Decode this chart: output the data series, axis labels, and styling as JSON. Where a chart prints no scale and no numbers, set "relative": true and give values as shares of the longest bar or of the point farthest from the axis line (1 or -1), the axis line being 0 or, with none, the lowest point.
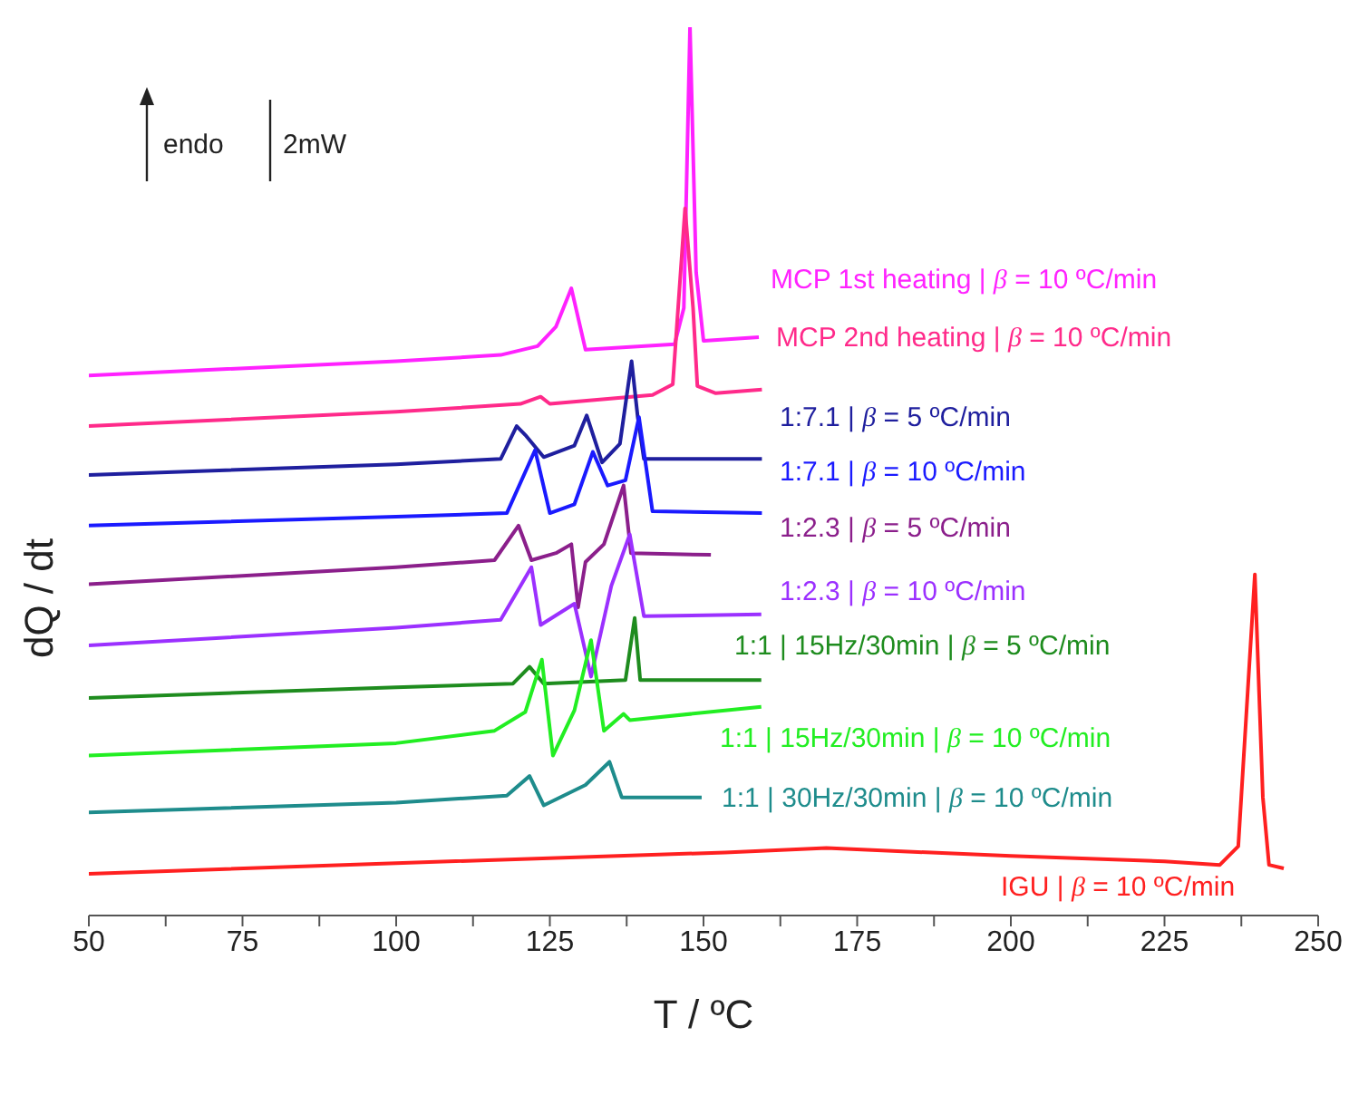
{
  "chart_data": {
    "type": "line",
    "relative": true,
    "xlabel": "T / ºC",
    "ylabel": "dQ / dt",
    "xlim": [
      50,
      250
    ],
    "xticks": [
      50,
      {
        "value": 62.5,
        "label": null
      },
      75,
      {
        "value": 87.5,
        "label": null
      },
      100,
      {
        "value": 112.5,
        "label": null
      },
      125,
      {
        "value": 137.5,
        "label": null
      },
      150,
      {
        "value": 162.5,
        "label": null
      },
      175,
      {
        "value": 187.5,
        "label": null
      },
      200,
      {
        "value": 212.5,
        "label": null
      },
      225,
      {
        "value": 237.5,
        "label": null
      },
      250
    ],
    "annotations": [
      "endo",
      "2mW"
    ],
    "series": [
      {
        "name": "MCP 1st heating | β = 10 ºC/min",
        "color": "#ff22ff",
        "x": [
          50,
          100,
          117,
          123,
          126,
          128.5,
          130.8,
          145.3,
          146.8,
          147.8,
          148.8,
          150,
          159
        ],
        "values": [
          0.608,
          0.624,
          0.631,
          0.641,
          0.663,
          0.706,
          0.637,
          0.643,
          0.684,
          1.0,
          0.724,
          0.647,
          0.651
        ]
      },
      {
        "name": "MCP 2nd heating | β = 10 ºC/min",
        "color": "#ff2a8a",
        "x": [
          50,
          100,
          120.2,
          123.5,
          125,
          141.7,
          145,
          147,
          148.3,
          149,
          152,
          159.5
        ],
        "values": [
          0.551,
          0.567,
          0.576,
          0.584,
          0.576,
          0.586,
          0.598,
          0.796,
          0.684,
          0.596,
          0.588,
          0.592
        ]
      },
      {
        "name": "1:7.1 | β = 5 ºC/min",
        "color": "#1f1f9e",
        "x": [
          50,
          100,
          117,
          119.6,
          121,
          124,
          129,
          131,
          133.5,
          136.4,
          138.3,
          139.3,
          140.3,
          159.5
        ],
        "values": [
          0.496,
          0.508,
          0.514,
          0.551,
          0.541,
          0.516,
          0.529,
          0.563,
          0.51,
          0.531,
          0.624,
          0.561,
          0.514,
          0.514
        ]
      },
      {
        "name": "1:7.1 | β = 10 ºC/min",
        "color": "#1a1aff",
        "x": [
          50,
          100,
          118,
          122.6,
          125,
          129,
          132,
          134.4,
          137.3,
          139.5,
          141.7,
          159.5
        ],
        "values": [
          0.439,
          0.449,
          0.453,
          0.524,
          0.453,
          0.463,
          0.522,
          0.484,
          0.49,
          0.561,
          0.455,
          0.453
        ]
      },
      {
        "name": "1:2.3 | β = 5 ºC/min",
        "color": "#8b1f8b",
        "x": [
          50,
          100,
          116,
          119.9,
          122,
          126,
          128.5,
          129.6,
          130.8,
          133.8,
          137,
          138.2,
          151.2
        ],
        "values": [
          0.373,
          0.392,
          0.4,
          0.439,
          0.4,
          0.408,
          0.418,
          0.347,
          0.398,
          0.418,
          0.484,
          0.408,
          0.406
        ]
      },
      {
        "name": "1:2.3 | β = 10 ºC/min",
        "color": "#9b30ff",
        "x": [
          50,
          100,
          117,
          122,
          123.5,
          129,
          131.7,
          135,
          138,
          140.3,
          159.4
        ],
        "values": [
          0.304,
          0.324,
          0.333,
          0.392,
          0.327,
          0.351,
          0.269,
          0.371,
          0.429,
          0.337,
          0.339
        ]
      },
      {
        "name": "1:1 | 15Hz/30min | β = 5 ºC/min",
        "color": "#1e8c1e",
        "x": [
          50,
          100,
          119,
          121.7,
          124,
          137.3,
          138.8,
          139.7,
          159.4
        ],
        "values": [
          0.245,
          0.257,
          0.261,
          0.28,
          0.261,
          0.265,
          0.335,
          0.265,
          0.265
        ]
      },
      {
        "name": "1:1 | 15Hz/30min | β = 10 ºC/min",
        "color": "#22ee22",
        "x": [
          50,
          100,
          116,
          121,
          123.7,
          125.5,
          129,
          131.7,
          133.8,
          137,
          138,
          159.4
        ],
        "values": [
          0.18,
          0.194,
          0.208,
          0.229,
          0.288,
          0.18,
          0.231,
          0.31,
          0.208,
          0.227,
          0.22,
          0.235
        ]
      },
      {
        "name": "1:1 | 30Hz/30min | β = 10 ºC/min",
        "color": "#1e8c8c",
        "x": [
          50,
          100,
          118,
          121.7,
          124,
          130.8,
          134.7,
          136.7,
          149.7
        ],
        "values": [
          0.116,
          0.127,
          0.135,
          0.157,
          0.124,
          0.147,
          0.173,
          0.133,
          0.133
        ]
      },
      {
        "name": "IGU | β = 10 ºC/min",
        "color": "#ff2020",
        "x": [
          50,
          100,
          153.5,
          170,
          200,
          225,
          234,
          237,
          239.7,
          241,
          242,
          244.4
        ],
        "values": [
          0.047,
          0.059,
          0.071,
          0.076,
          0.067,
          0.061,
          0.057,
          0.078,
          0.384,
          0.133,
          0.057,
          0.053
        ]
      }
    ]
  }
}
